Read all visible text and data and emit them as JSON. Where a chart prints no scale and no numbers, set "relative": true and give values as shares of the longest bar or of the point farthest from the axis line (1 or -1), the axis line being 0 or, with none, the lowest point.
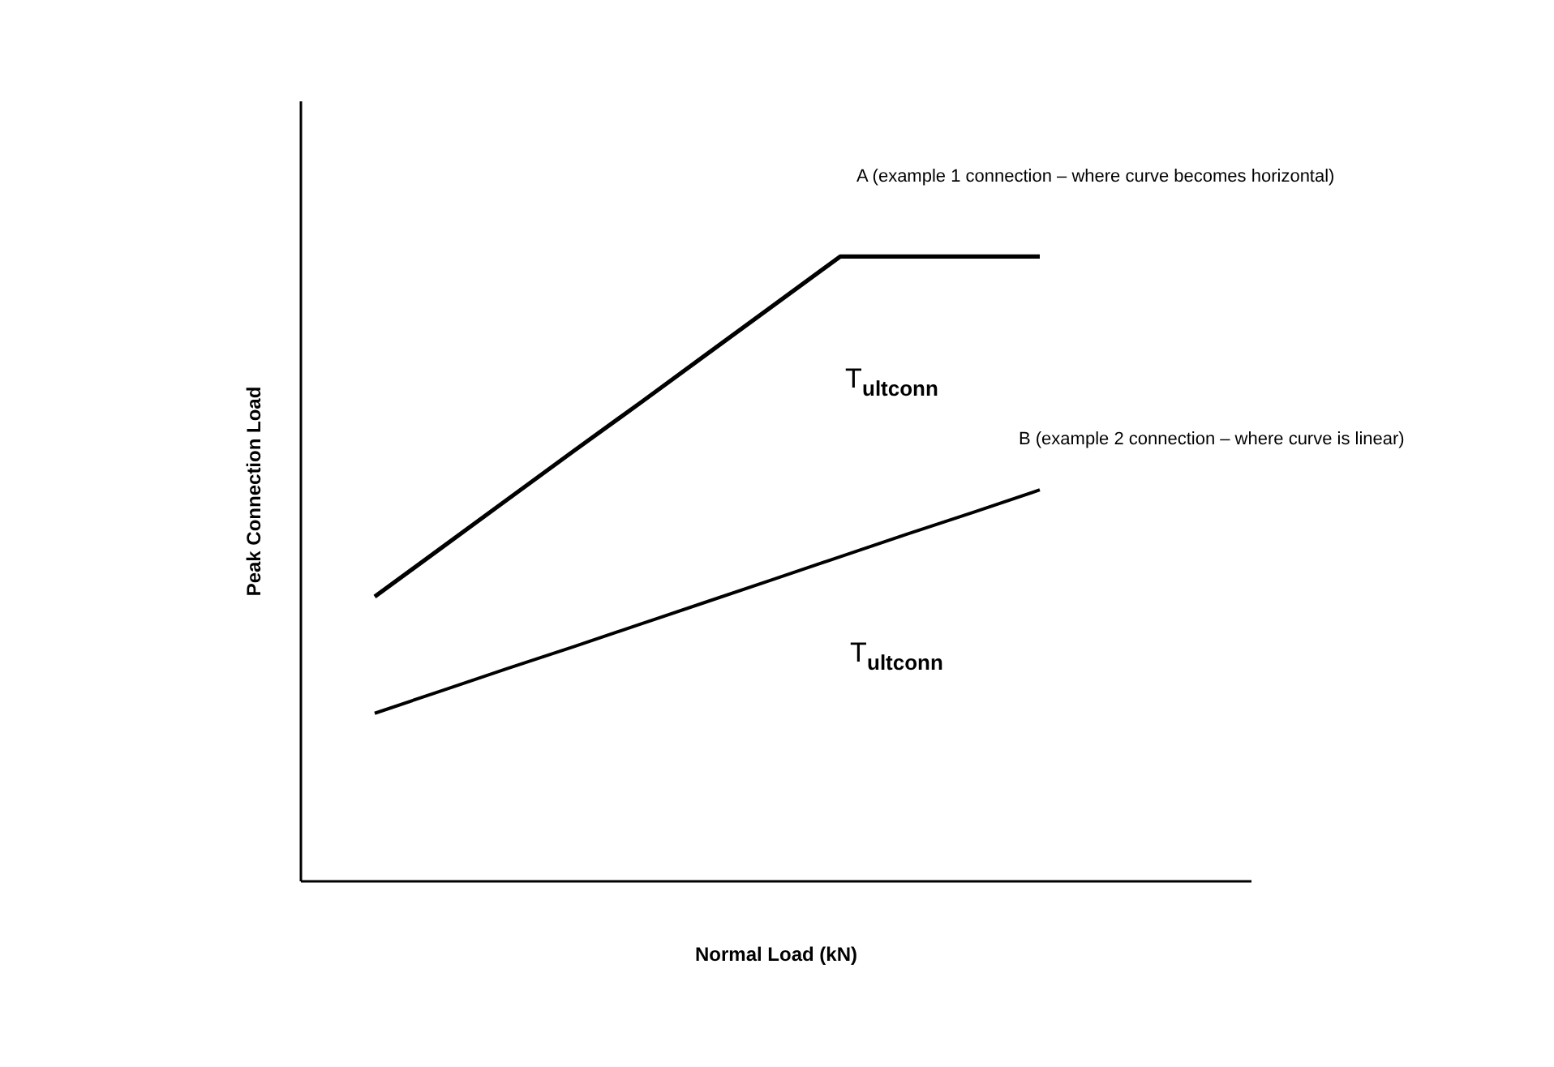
{
  "chart_data": {
    "type": "line",
    "relative": true,
    "xlabel": "Normal Load (kN)",
    "ylabel": "Peak Connection Load",
    "grid": false,
    "marker": "none",
    "line_style": "solid",
    "categories": [
      null,
      null,
      null,
      null,
      null,
      null,
      null,
      null,
      null,
      null,
      null
    ],
    "series": [
      {
        "color": "#000000",
        "values": [
          0.455,
          0.533,
          0.611,
          0.689,
          0.766,
          0.844,
          0.922,
          1,
          1,
          1,
          1
        ]
      },
      {
        "color": "#000000",
        "values": [
          0.268,
          0.304,
          0.34,
          0.375,
          0.411,
          0.447,
          0.483,
          0.519,
          0.555,
          0.59,
          0.626
        ]
      }
    ],
    "annotations": [
      "A  (example 1 connection – where curve becomes horizontal)",
      "T$_{ultconn}$",
      "B  (example 2 connection – where curve is linear)",
      "T$_{ultconn}$"
    ]
  }
}
